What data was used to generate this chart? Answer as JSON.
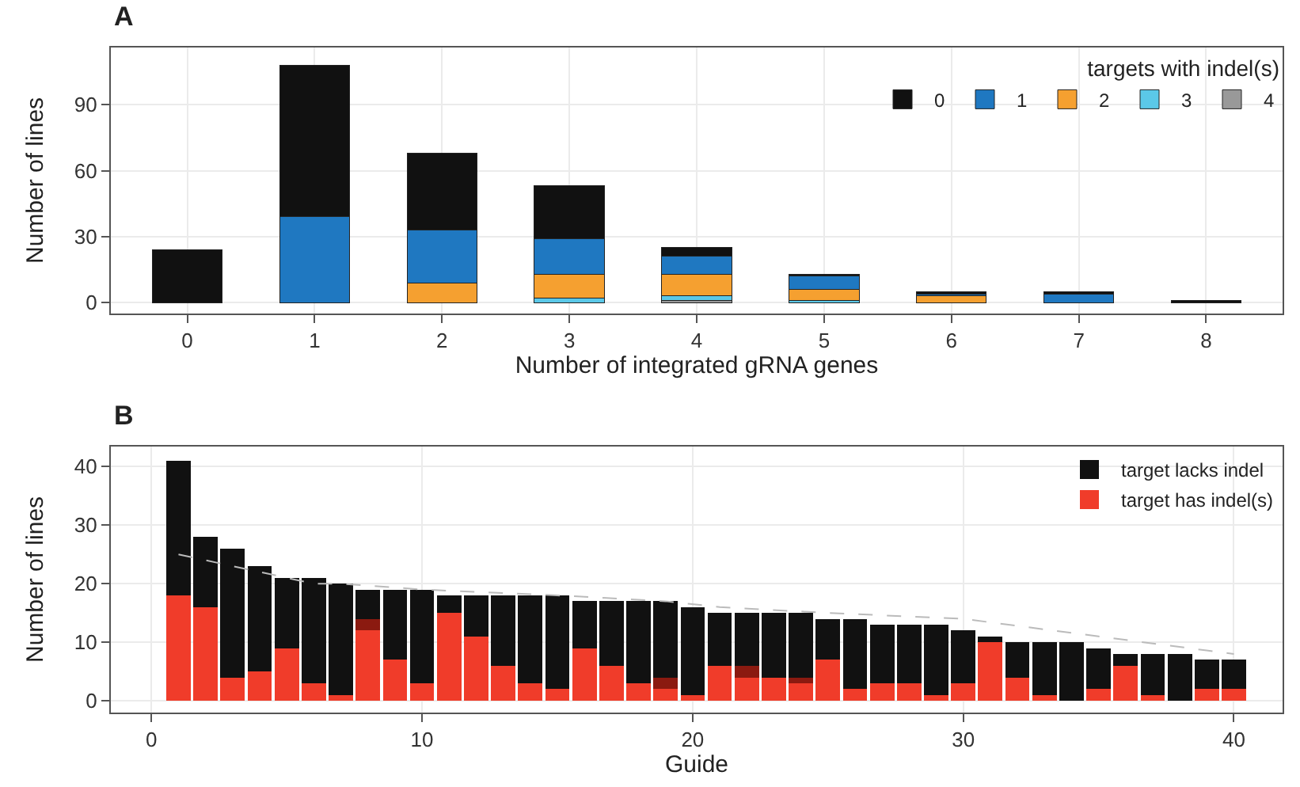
{
  "chart_data": [
    {
      "type": "bar",
      "title": "A",
      "stacked": true,
      "xlabel": "Number of integrated gRNA genes",
      "ylabel": "Number of lines",
      "legend_title": "targets with indel(s)",
      "legend": "top right",
      "grid": true,
      "categories": [
        "0",
        "1",
        "2",
        "3",
        "4",
        "5",
        "6",
        "7",
        "8"
      ],
      "ylim": [
        -5,
        116
      ],
      "yticks": [
        0,
        30,
        60,
        90
      ],
      "series": [
        {
          "name": "4",
          "color": "#999999",
          "values": [
            null,
            null,
            null,
            null,
            1,
            null,
            null,
            null,
            null
          ]
        },
        {
          "name": "3",
          "color": "#5bc8e8",
          "values": [
            null,
            null,
            null,
            2,
            2,
            1,
            null,
            null,
            null
          ]
        },
        {
          "name": "2",
          "color": "#f5a030",
          "values": [
            null,
            null,
            9,
            11,
            10,
            5,
            3,
            null,
            null
          ]
        },
        {
          "name": "1",
          "color": "#1f78c1",
          "values": [
            null,
            39,
            24,
            16,
            8,
            6,
            1,
            4,
            null
          ]
        },
        {
          "name": "0",
          "color": "#111111",
          "values": [
            24,
            69,
            35,
            24,
            4,
            1,
            1,
            1,
            1
          ]
        }
      ]
    },
    {
      "type": "bar",
      "title": "B",
      "stacked": true,
      "xlabel": "Guide",
      "ylabel": "Number of lines",
      "legend": "top right",
      "grid": true,
      "x": [
        1,
        2,
        3,
        4,
        5,
        6,
        7,
        8,
        9,
        10,
        11,
        12,
        13,
        14,
        15,
        16,
        17,
        18,
        19,
        20,
        21,
        22,
        23,
        24,
        25,
        26,
        27,
        28,
        29,
        30,
        31,
        32,
        33,
        34,
        35,
        36,
        37,
        38,
        39,
        40
      ],
      "xlim": [
        -1.5,
        41.8
      ],
      "xticks": [
        0,
        10,
        20,
        30,
        40
      ],
      "ylim": [
        -2,
        43.4
      ],
      "yticks": [
        0,
        10,
        20,
        30,
        40
      ],
      "series": [
        {
          "name": "target has indel(s)",
          "color": "#f03c2a",
          "values": [
            18,
            16,
            4,
            5,
            9,
            3,
            1,
            12,
            7,
            3,
            15,
            11,
            6,
            3,
            2,
            9,
            6,
            3,
            2,
            1,
            6,
            4,
            4,
            3,
            7,
            2,
            3,
            3,
            1,
            3,
            10,
            4,
            1,
            0,
            2,
            6,
            1,
            0,
            2,
            2
          ]
        },
        {
          "color": "#8b1a10",
          "values": [
            null,
            null,
            null,
            null,
            null,
            null,
            null,
            2,
            null,
            null,
            null,
            null,
            null,
            null,
            null,
            null,
            null,
            null,
            2,
            null,
            null,
            2,
            null,
            1,
            null,
            null,
            null,
            null,
            null,
            null,
            null,
            null,
            null,
            null,
            null,
            null,
            null,
            null,
            null,
            null
          ]
        },
        {
          "name": "target lacks indel",
          "color": "#111111",
          "values": [
            23,
            12,
            22,
            18,
            12,
            18,
            19,
            5,
            12,
            16,
            3,
            7,
            12,
            15,
            16,
            8,
            11,
            14,
            13,
            15,
            9,
            9,
            11,
            11,
            7,
            12,
            10,
            10,
            12,
            9,
            1,
            6,
            9,
            10,
            7,
            2,
            7,
            8,
            5,
            5
          ]
        },
        {
          "type": "line",
          "color": "#bbbbbb",
          "line_style": "dashed",
          "x": [
            1,
            2,
            3,
            4,
            5,
            6,
            7,
            10,
            15,
            19,
            21,
            25,
            30,
            35,
            40
          ],
          "values": [
            25,
            24,
            23,
            22,
            21,
            20,
            20,
            19,
            18,
            17,
            16,
            15,
            14,
            11,
            8
          ]
        }
      ]
    }
  ]
}
